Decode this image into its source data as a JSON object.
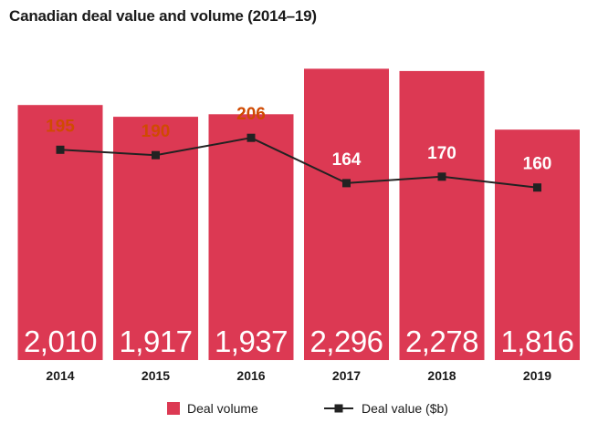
{
  "chart_data": {
    "type": "bar",
    "title": "Canadian deal value and volume (2014–19)",
    "categories": [
      "2014",
      "2015",
      "2016",
      "2017",
      "2018",
      "2019"
    ],
    "series": [
      {
        "name": "Deal volume",
        "kind": "bar",
        "values": [
          2010,
          1917,
          1937,
          2296,
          2278,
          1816
        ],
        "labels": [
          "2,010",
          "1,917",
          "1,937",
          "2,296",
          "2,278",
          "1,816"
        ],
        "color": "#dc3953",
        "label_color": "#ffffff"
      },
      {
        "name": "Deal value ($b)",
        "kind": "line",
        "values": [
          195,
          190,
          206,
          164,
          170,
          160
        ],
        "labels": [
          "195",
          "190",
          "206",
          "164",
          "170",
          "160"
        ],
        "color": "#222222",
        "marker": "square",
        "label_colors": [
          "#d04a02",
          "#d04a02",
          "#d04a02",
          "#ffffff",
          "#ffffff",
          "#ffffff"
        ]
      }
    ],
    "volume_ylim": [
      0,
      2550
    ],
    "value_ylim": [
      0,
      300
    ],
    "grid": false,
    "legend": "bottom-center"
  }
}
